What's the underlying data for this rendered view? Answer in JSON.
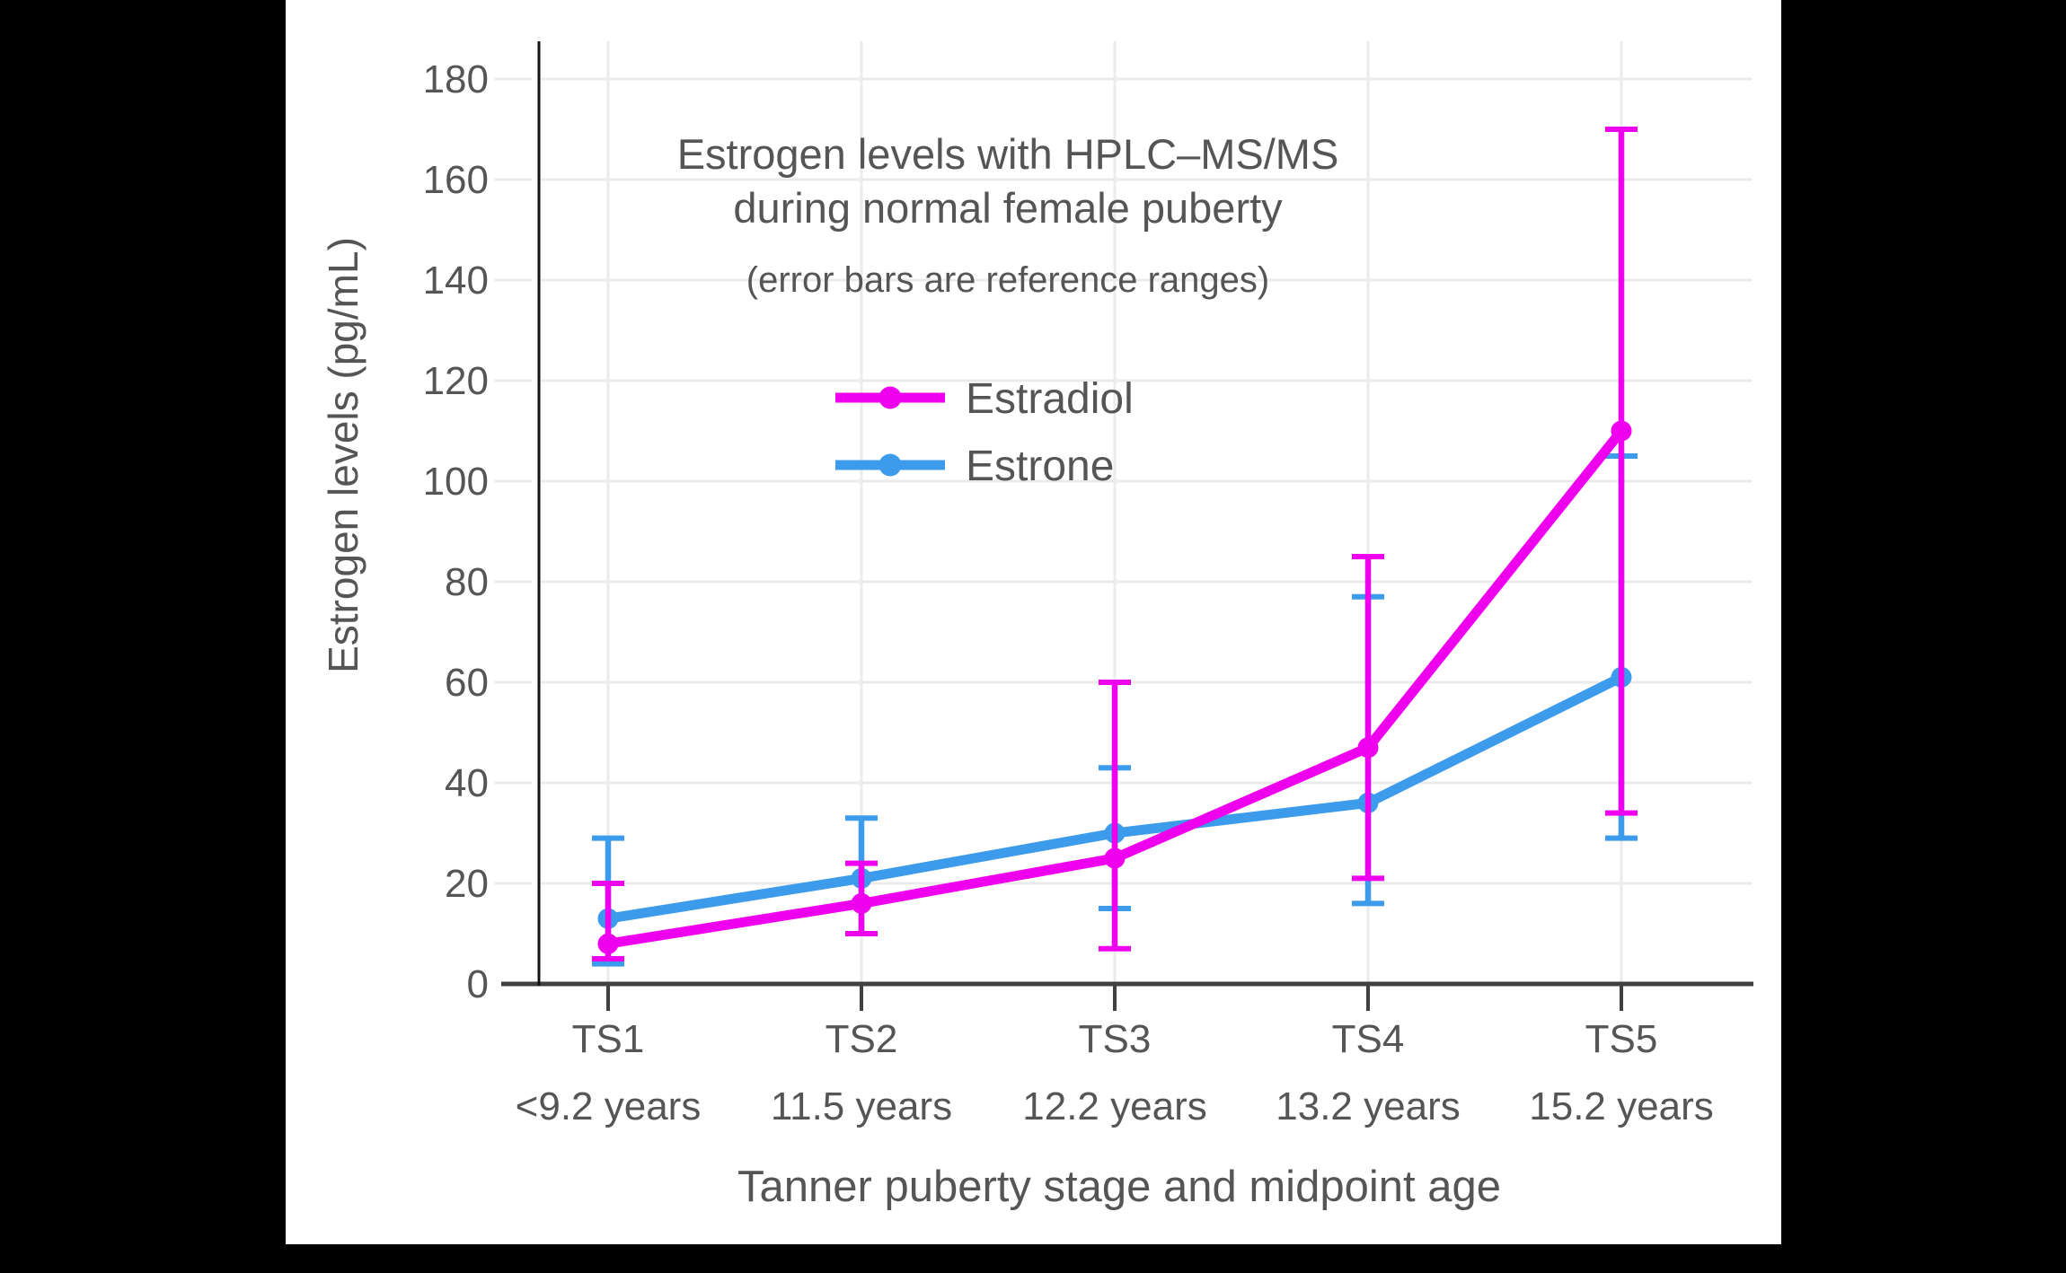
{
  "colors": {
    "background": "#000000",
    "panel": "#ffffff",
    "text": "#555555",
    "grid": "#ebebeb",
    "y_axis_line": "#111111",
    "x_axis_line": "#404040",
    "estradiol": "#ee00ee",
    "estrone": "#3d9bec"
  },
  "chart_data": {
    "type": "line",
    "title": "Estrogen levels with HPLC–MS/MS",
    "title_line2": "during normal female puberty",
    "subtitle": "(error bars are reference ranges)",
    "ylabel": "Estrogen levels (pg/mL)",
    "xlabel": "Tanner puberty stage and midpoint age",
    "units": "pg/mL",
    "ylim": [
      0,
      180
    ],
    "yticks": [
      0,
      20,
      40,
      60,
      80,
      100,
      120,
      140,
      160,
      180
    ],
    "grid": true,
    "legend_position": "inside-upper-left",
    "categories": [
      "TS1",
      "TS2",
      "TS3",
      "TS4",
      "TS5"
    ],
    "category_ages": [
      "<9.2 years",
      "11.5 years",
      "12.2 years",
      "13.2 years",
      "15.2 years"
    ],
    "series": [
      {
        "name": "Estradiol",
        "color": "#ee00ee",
        "values": [
          8,
          16,
          25,
          47,
          110
        ],
        "range_low": [
          5,
          10,
          7,
          21,
          34
        ],
        "range_high": [
          20,
          24,
          60,
          85,
          170
        ]
      },
      {
        "name": "Estrone",
        "color": "#3d9bec",
        "values": [
          13,
          21,
          30,
          36,
          61
        ],
        "range_low": [
          4,
          10,
          15,
          16,
          29
        ],
        "range_high": [
          29,
          33,
          43,
          77,
          105
        ]
      }
    ]
  }
}
